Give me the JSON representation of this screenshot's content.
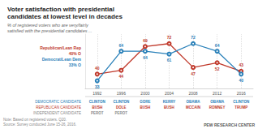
{
  "chart_data": {
    "type": "line",
    "title": "Voter satisfaction with presidential\ncandidates at lowest level in decades",
    "subtitle": "% of registered voters who are very/fairly\nsatisfied with the presidential candidates ...",
    "x": [
      1992,
      1996,
      2000,
      2004,
      2008,
      2012,
      2016
    ],
    "xlim": [
      1990,
      2018
    ],
    "xticks": [
      1992,
      1996,
      2000,
      2004,
      2008,
      2012,
      2016
    ],
    "ylim": [
      25,
      82
    ],
    "tick_labels": "x",
    "grid": true,
    "data_labels": true,
    "marker": "circle",
    "series": [
      {
        "name": "Republican/Lean Rep",
        "color": "#c0392b",
        "values": [
          40,
          44,
          69,
          72,
          47,
          52,
          43
        ]
      },
      {
        "name": "Democrat/Lean Dem",
        "color": "#2980b9",
        "values": [
          33,
          64,
          64,
          61,
          72,
          64,
          40
        ]
      }
    ],
    "annotations": [
      "40% O",
      "33% O"
    ],
    "candidates": [
      {
        "name": "DEMOCRATIC CANDIDATE",
        "color": "#2980b9",
        "values": [
          "CLINTON",
          "CLINTON",
          "GORE",
          "KERRY",
          "OBAMA",
          "OBAMA",
          "CLINTON"
        ]
      },
      {
        "name": "REPUBLICAN CANDIDATE",
        "color": "#c0392b",
        "values": [
          "BUSH",
          "DOLE",
          "BUSH",
          "BUSH",
          "MCCAIN",
          "ROMNEY",
          "TRUMP"
        ]
      },
      {
        "name": "INDEPENDENT CANDIDATE",
        "color": "#888888",
        "values": [
          "PEROT",
          "PEROT",
          null,
          null,
          null,
          null,
          null
        ]
      }
    ],
    "note": "Note: Based on registered voters. Q20.\nSource: Survey conducted June 15-26, 2016.",
    "source": "PEW RESEARCH CENTER"
  }
}
